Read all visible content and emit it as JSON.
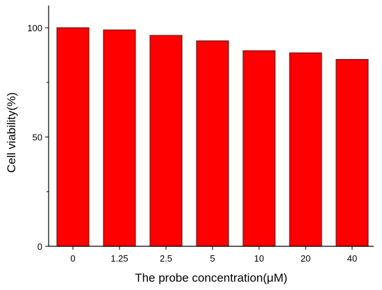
{
  "chart_data": {
    "type": "bar",
    "categories": [
      "0",
      "1.25",
      "2.5",
      "5",
      "10",
      "20",
      "40"
    ],
    "values": [
      100,
      99,
      96.5,
      94,
      89.5,
      88.5,
      85.5
    ],
    "title": "",
    "xlabel": "The probe concentration(μM)",
    "ylabel": "Cell viability(%)",
    "ylim": [
      0,
      109
    ],
    "yticks": [
      0,
      50,
      100
    ],
    "bar_color": "#ff0000",
    "bar_edge_color": "#6b1a1a",
    "grid": false,
    "legend": "none"
  }
}
